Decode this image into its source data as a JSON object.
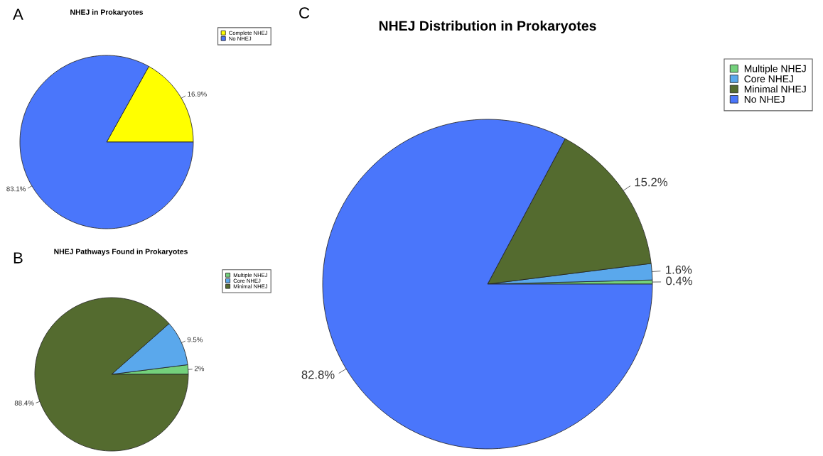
{
  "chart_data": [
    {
      "type": "pie",
      "title": "NHEJ in Prokaryotes",
      "annotations": [
        "A"
      ],
      "categories": [
        "Complete NHEJ",
        "No NHEJ"
      ],
      "values": [
        16.9,
        83.1
      ],
      "value_labels": [
        "16.9%",
        "83.1%"
      ],
      "colors": [
        "#ffff00",
        "#4a76fb"
      ],
      "data_labels": true,
      "legend": "top right"
    },
    {
      "type": "pie",
      "title": "NHEJ Distribution in Prokaryotes",
      "annotations": [
        "C"
      ],
      "categories": [
        "Multiple NHEJ",
        "Core NHEJ",
        "Minimal NHEJ",
        "No NHEJ"
      ],
      "values": [
        0.4,
        1.6,
        15.2,
        82.8
      ],
      "value_labels": [
        "0.4%",
        "1.6%",
        "15.2%",
        "82.8%"
      ],
      "colors": [
        "#74d17c",
        "#5aa8ec",
        "#546b2f",
        "#4a76fb"
      ],
      "data_labels": true,
      "legend": "top right"
    },
    {
      "type": "pie",
      "title": "NHEJ Pathways Found in Prokaryotes",
      "annotations": [
        "B"
      ],
      "categories": [
        "Multiple NHEJ",
        "Core NHEJ",
        "Minimal NHEJ"
      ],
      "values": [
        2,
        9.5,
        88.4
      ],
      "value_labels": [
        "2%",
        "9.5%",
        "88.4%"
      ],
      "colors": [
        "#74d17c",
        "#5aa8ec",
        "#546b2f"
      ],
      "data_labels": true,
      "legend": "top right"
    }
  ]
}
